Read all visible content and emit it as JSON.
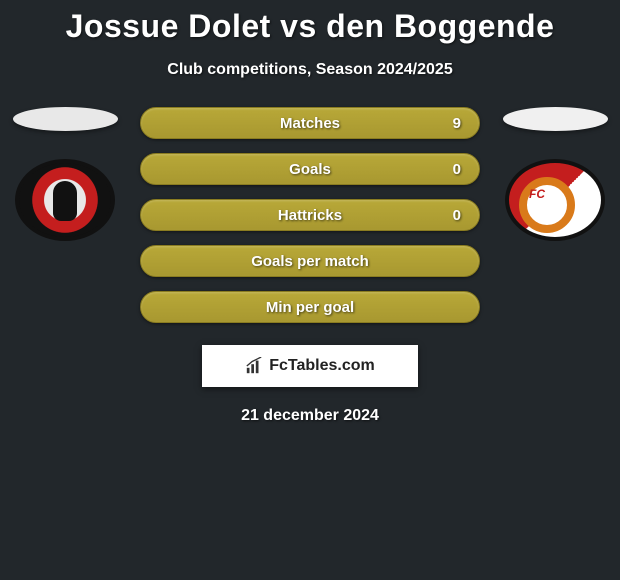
{
  "header": {
    "title_player1": "Jossue Dolet",
    "title_vs": "vs",
    "title_player2": "den Boggende",
    "subtitle": "Club competitions, Season 2024/2025"
  },
  "stats": {
    "rows": [
      {
        "label": "Matches",
        "value_right": "9"
      },
      {
        "label": "Goals",
        "value_right": "0"
      },
      {
        "label": "Hattricks",
        "value_right": "0"
      },
      {
        "label": "Goals per match",
        "value_right": ""
      },
      {
        "label": "Min per goal",
        "value_right": ""
      }
    ],
    "bar_color": "#ab9b32",
    "bar_border": "#8a7c20",
    "text_color": "#ffffff"
  },
  "teams": {
    "left": {
      "name": "Helmond Sport",
      "ellipse_color": "#e8e8e8"
    },
    "right": {
      "name": "FC Utrecht",
      "fc_text": "FC",
      "ellipse_color": "#f0f0f0"
    }
  },
  "footer": {
    "brand": "FcTables.com",
    "date": "21 december 2024"
  },
  "colors": {
    "background": "#22272b",
    "title": "#ffffff"
  }
}
